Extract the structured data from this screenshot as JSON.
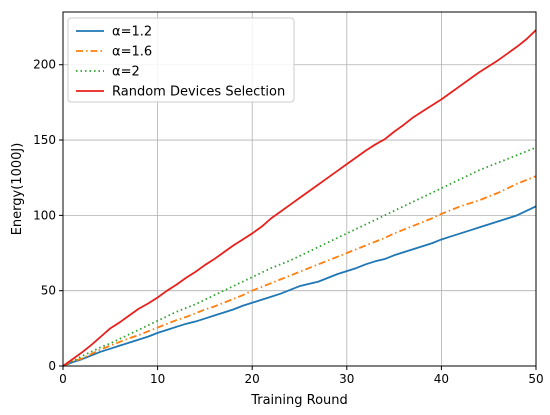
{
  "chart_data": {
    "type": "line",
    "xlabel": "Training Round",
    "ylabel": "Energy(1000J)",
    "xlim": [
      0,
      50
    ],
    "ylim": [
      0,
      235
    ],
    "xticks": [
      0,
      10,
      20,
      30,
      40,
      50
    ],
    "yticks": [
      0,
      50,
      100,
      150,
      200
    ],
    "grid": true,
    "legend_position": "top-left",
    "x": [
      0,
      1,
      2,
      3,
      4,
      5,
      6,
      7,
      8,
      9,
      10,
      11,
      12,
      13,
      14,
      15,
      16,
      17,
      18,
      19,
      20,
      21,
      22,
      23,
      24,
      25,
      26,
      27,
      28,
      29,
      30,
      31,
      32,
      33,
      34,
      35,
      36,
      37,
      38,
      39,
      40,
      41,
      42,
      43,
      44,
      45,
      46,
      47,
      48,
      49,
      50
    ],
    "series": [
      {
        "name": "α=1.2",
        "color": "#1f77b4",
        "dash": "solid",
        "values": [
          0,
          2.5,
          4.5,
          7,
          9.5,
          11.5,
          13.5,
          15.5,
          17.5,
          19.5,
          22,
          24,
          26,
          28,
          29.5,
          31.5,
          33.5,
          35.5,
          37.5,
          40,
          42,
          44,
          46,
          48,
          50.5,
          53,
          54.5,
          56,
          58.5,
          61,
          63,
          65,
          67.5,
          69.5,
          71,
          73.5,
          75.5,
          77.5,
          79.5,
          81.5,
          84,
          86,
          88,
          90,
          92,
          94,
          96,
          98,
          100,
          103,
          106
        ]
      },
      {
        "name": "α=1.6",
        "color": "#ff7f0e",
        "dash": "dashdot",
        "values": [
          0,
          3,
          5,
          8,
          11,
          13.5,
          16,
          18.5,
          20.5,
          23,
          25.5,
          28,
          30.5,
          32.5,
          35,
          37.5,
          39.5,
          42,
          44.5,
          47,
          50,
          52.5,
          55,
          57.5,
          60,
          62.5,
          65,
          67.5,
          70,
          72.5,
          75,
          77.5,
          80,
          82.5,
          85,
          88,
          90.5,
          93,
          95.5,
          98,
          101,
          103.5,
          106,
          108,
          110,
          112.5,
          115,
          118,
          121,
          123.5,
          126
        ]
      },
      {
        "name": "α=2",
        "color": "#2ca02c",
        "dash": "dotted",
        "values": [
          0,
          3,
          6.5,
          9.5,
          12.5,
          15,
          18,
          21,
          24,
          27,
          30,
          33,
          36,
          38.5,
          41,
          44,
          47,
          50,
          53,
          56,
          59,
          62,
          65,
          67.5,
          70,
          73,
          76,
          79,
          82,
          85,
          88,
          91,
          94,
          97,
          100,
          103,
          106,
          109,
          112,
          115,
          118,
          121,
          124,
          127,
          130,
          132.5,
          135,
          137.5,
          140,
          142.5,
          145
        ]
      },
      {
        "name": "Random Devices Selection",
        "color": "#e8211c",
        "dash": "solid",
        "values": [
          0,
          4.5,
          9,
          14,
          19.5,
          25,
          29,
          33.5,
          38,
          41.5,
          45.5,
          50,
          54,
          58.5,
          62.5,
          67,
          71,
          75.5,
          80,
          84,
          88,
          92.5,
          98,
          102.5,
          107,
          111.5,
          116,
          120.5,
          125,
          129.5,
          134,
          138.5,
          143,
          147,
          150.5,
          155.5,
          160,
          165,
          169,
          173,
          177,
          181.5,
          186,
          190.5,
          195,
          199,
          203,
          207.5,
          212,
          217,
          223
        ]
      }
    ]
  }
}
